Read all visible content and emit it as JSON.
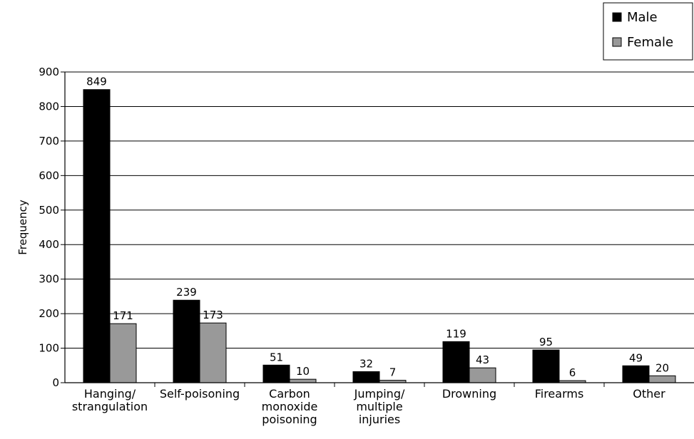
{
  "chart_data": {
    "type": "bar",
    "ylabel": "Frequency",
    "xlabel": "",
    "ylim": [
      0,
      900
    ],
    "yticks": [
      0,
      100,
      200,
      300,
      400,
      500,
      600,
      700,
      800,
      900
    ],
    "grid": true,
    "legend_position": "top-right",
    "categories": [
      [
        "Hanging/",
        "strangulation"
      ],
      [
        "Self-poisoning"
      ],
      [
        "Carbon",
        "monoxide",
        "poisoning"
      ],
      [
        "Jumping/",
        "multiple",
        "injuries"
      ],
      [
        "Drowning"
      ],
      [
        "Firearms"
      ],
      [
        "Other"
      ]
    ],
    "series": [
      {
        "name": "Male",
        "color": "#000000",
        "values": [
          849,
          239,
          51,
          32,
          119,
          95,
          49
        ]
      },
      {
        "name": "Female",
        "color": "#999999",
        "values": [
          171,
          173,
          10,
          7,
          43,
          6,
          20
        ]
      }
    ]
  }
}
